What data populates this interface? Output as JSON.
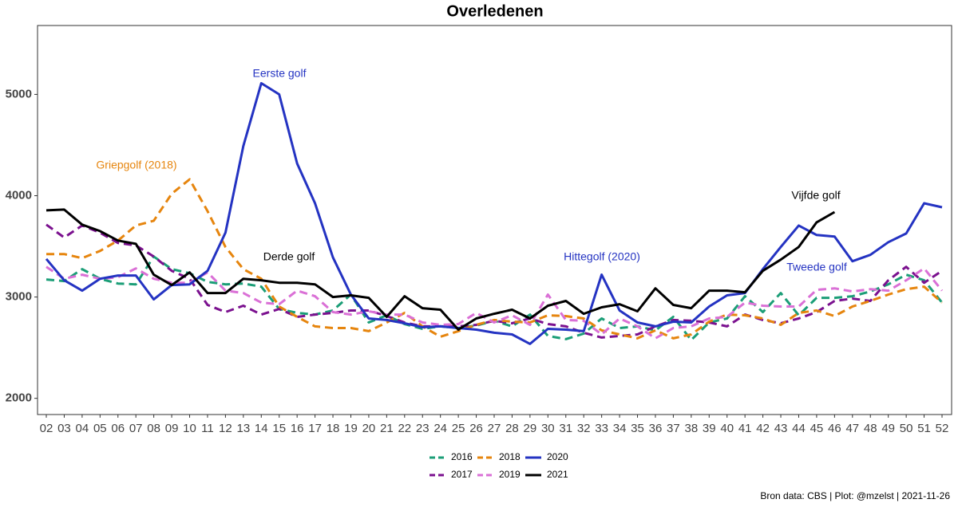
{
  "chart_data": {
    "type": "line",
    "title": "Overledenen",
    "categories": [
      "02",
      "03",
      "04",
      "05",
      "06",
      "07",
      "08",
      "09",
      "10",
      "11",
      "12",
      "13",
      "14",
      "15",
      "16",
      "17",
      "18",
      "19",
      "20",
      "21",
      "22",
      "23",
      "24",
      "25",
      "26",
      "27",
      "28",
      "29",
      "30",
      "31",
      "32",
      "33",
      "34",
      "35",
      "36",
      "37",
      "38",
      "39",
      "40",
      "41",
      "42",
      "43",
      "44",
      "45",
      "46",
      "47",
      "48",
      "49",
      "50",
      "51",
      "52"
    ],
    "series": [
      {
        "name": "2016",
        "color": "#1b9e77",
        "linetype": "dashed",
        "values": [
          3173,
          3157,
          3275,
          3180,
          3133,
          3125,
          3400,
          3275,
          3235,
          3149,
          3125,
          3133,
          3102,
          2882,
          2843,
          2827,
          2867,
          3024,
          2749,
          2820,
          2733,
          2686,
          2710,
          2694,
          2718,
          2765,
          2710,
          2827,
          2616,
          2584,
          2639,
          2788,
          2694,
          2710,
          2671,
          2804,
          2576,
          2749,
          2788,
          3008,
          2851,
          3039,
          2820,
          2992,
          2992,
          3008,
          3055,
          3125,
          3220,
          3165,
          2945
        ]
      },
      {
        "name": "2017",
        "color": "#7b118f",
        "linetype": "dashed",
        "values": [
          3714,
          3588,
          3706,
          3635,
          3533,
          3510,
          3400,
          3259,
          3180,
          2922,
          2851,
          2914,
          2827,
          2882,
          2804,
          2827,
          2843,
          2867,
          2867,
          2812,
          2749,
          2710,
          2710,
          2710,
          2725,
          2765,
          2741,
          2788,
          2733,
          2710,
          2647,
          2600,
          2616,
          2631,
          2710,
          2773,
          2765,
          2749,
          2710,
          2827,
          2773,
          2741,
          2788,
          2851,
          2961,
          2984,
          2961,
          3165,
          3298,
          3141,
          3259
        ]
      },
      {
        "name": "2018",
        "color": "#e6850e",
        "linetype": "dashed",
        "values": [
          3424,
          3424,
          3384,
          3455,
          3557,
          3706,
          3753,
          4020,
          4161,
          3847,
          3494,
          3275,
          3180,
          2906,
          2804,
          2710,
          2694,
          2694,
          2663,
          2749,
          2843,
          2710,
          2608,
          2663,
          2725,
          2773,
          2757,
          2749,
          2820,
          2812,
          2788,
          2671,
          2631,
          2592,
          2671,
          2592,
          2631,
          2757,
          2827,
          2820,
          2788,
          2725,
          2843,
          2867,
          2812,
          2906,
          2961,
          3024,
          3078,
          3102,
          2945
        ]
      },
      {
        "name": "2019",
        "color": "#da70d6",
        "linetype": "dashed",
        "values": [
          3298,
          3180,
          3220,
          3180,
          3196,
          3282,
          3180,
          3141,
          3141,
          3243,
          3063,
          3039,
          2945,
          2929,
          3063,
          3008,
          2851,
          2827,
          2859,
          2827,
          2827,
          2749,
          2725,
          2733,
          2843,
          2749,
          2820,
          2725,
          3024,
          2773,
          2765,
          2631,
          2788,
          2710,
          2592,
          2694,
          2710,
          2788,
          2804,
          2945,
          2914,
          2906,
          2906,
          3071,
          3086,
          3055,
          3078,
          3063,
          3165,
          3282,
          3063
        ]
      },
      {
        "name": "2020",
        "color": "#2433c2",
        "linetype": "solid",
        "values": [
          3376,
          3165,
          3063,
          3180,
          3212,
          3212,
          2976,
          3118,
          3125,
          3259,
          3635,
          4490,
          5110,
          5000,
          4318,
          3925,
          3392,
          3024,
          2788,
          2773,
          2741,
          2702,
          2710,
          2694,
          2678,
          2647,
          2631,
          2537,
          2686,
          2678,
          2663,
          3220,
          2867,
          2749,
          2710,
          2757,
          2749,
          2906,
          3016,
          3039,
          3275,
          3494,
          3706,
          3612,
          3596,
          3353,
          3416,
          3541,
          3627,
          3925,
          3886
        ]
      },
      {
        "name": "2021",
        "color": "#000000",
        "linetype": "solid",
        "values": [
          3855,
          3863,
          3714,
          3651,
          3557,
          3525,
          3220,
          3118,
          3243,
          3039,
          3039,
          3180,
          3165,
          3141,
          3141,
          3125,
          3000,
          3016,
          2992,
          2804,
          3008,
          2890,
          2875,
          2678,
          2788,
          2835,
          2875,
          2788,
          2914,
          2961,
          2835,
          2898,
          2929,
          2859,
          3086,
          2922,
          2890,
          3063,
          3063,
          3047,
          3259,
          3369,
          3494,
          3737,
          3839,
          null,
          null,
          null,
          null,
          null,
          null
        ]
      }
    ],
    "ylim": [
      1840,
      5680
    ],
    "yticks": [
      2000,
      3000,
      4000,
      5000
    ],
    "grid": false,
    "legend": "bottom",
    "annotations": [
      "Eerste golf",
      "Griepgolf (2018)",
      "Derde golf",
      "Hittegolf (2020)",
      "Vijfde golf",
      "Tweede golf"
    ],
    "caption": "Bron data: CBS  | Plot: @mzelst |  2021-11-26"
  }
}
